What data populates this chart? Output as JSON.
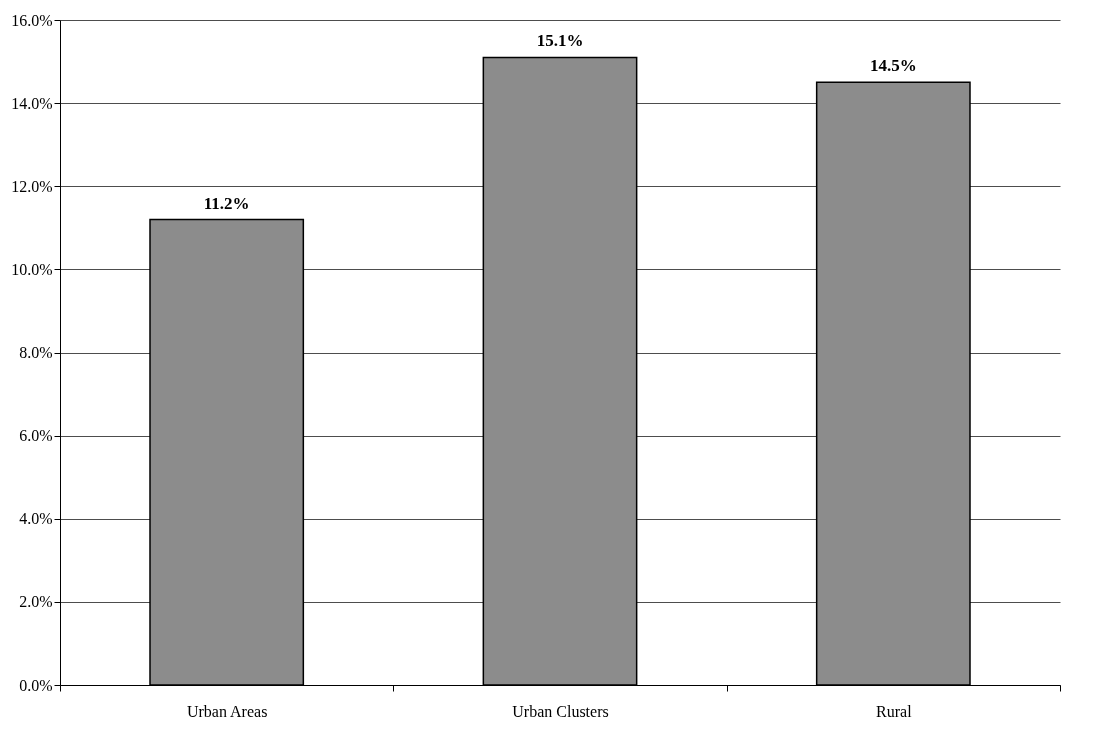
{
  "chart_data": {
    "type": "bar",
    "categories": [
      "Urban Areas",
      "Urban Clusters",
      "Rural"
    ],
    "values": [
      11.2,
      15.1,
      14.5
    ],
    "value_labels": [
      "11.2%",
      "15.1%",
      "14.5%"
    ],
    "color": "#8c8c8c",
    "ylim": [
      0,
      16
    ],
    "yticks": [
      {
        "value": 0,
        "label": "0.0%"
      },
      {
        "value": 2,
        "label": "2.0%"
      },
      {
        "value": 4,
        "label": "4.0%"
      },
      {
        "value": 6,
        "label": "6.0%"
      },
      {
        "value": 8,
        "label": "8.0%"
      },
      {
        "value": 10,
        "label": "10.0%"
      },
      {
        "value": 12,
        "label": "12.0%"
      },
      {
        "value": 14,
        "label": "14.0%"
      },
      {
        "value": 16,
        "label": "16.0%"
      }
    ],
    "grid": "y"
  }
}
